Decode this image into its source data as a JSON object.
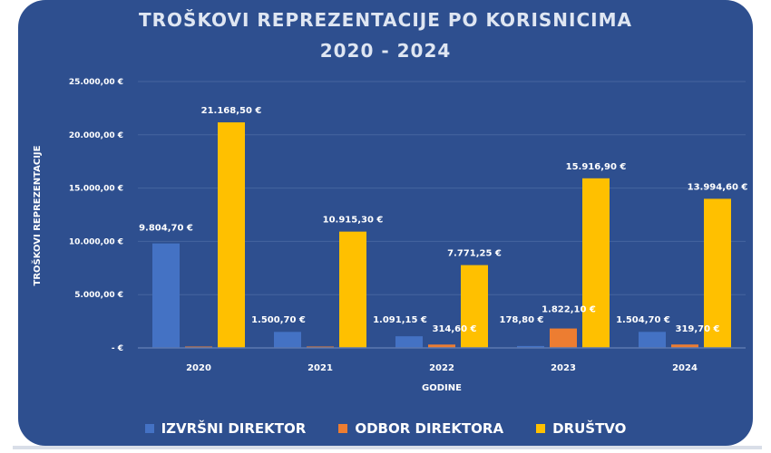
{
  "chart_data": {
    "type": "bar",
    "title": "TROŠKOVI REPREZENTACIJE PO KORISNICIMA",
    "subtitle": "2020 - 2024",
    "xlabel": "GODINE",
    "ylabel": "TROŠKOVI REPREZENTACIJE",
    "ylim": [
      0,
      25000
    ],
    "yticks": [
      0,
      5000,
      10000,
      15000,
      20000,
      25000
    ],
    "ytick_labels": [
      "-   €",
      "5.000,00 €",
      "10.000,00 €",
      "15.000,00 €",
      "20.000,00 €",
      "25.000,00 €"
    ],
    "categories": [
      "2020",
      "2021",
      "2022",
      "2023",
      "2024"
    ],
    "series": [
      {
        "name": "IZVRŠNI DIREKTOR",
        "color": "#4472c4",
        "values": [
          9804.7,
          1500.7,
          1091.15,
          178.8,
          1504.7
        ],
        "labels": [
          "9.804,70 €",
          "1.500,70 €",
          "1.091,15 €",
          "178,80 €",
          "1.504,70 €"
        ]
      },
      {
        "name": "ODBOR DIREKTORA",
        "color": "#ed7d31",
        "values": [
          120,
          120,
          314.6,
          1822.1,
          319.7
        ],
        "labels": [
          "",
          "",
          "314,60 €",
          "1.822,10 €",
          "319,70 €"
        ]
      },
      {
        "name": "DRUŠTVO",
        "color": "#ffc000",
        "values": [
          21168.5,
          10915.3,
          7771.25,
          15916.9,
          13994.6
        ],
        "labels": [
          "21.168,50 €",
          "10.915,30 €",
          "7.771,25 €",
          "15.916,90 €",
          "13.994,60 €"
        ]
      }
    ],
    "legend_position": "bottom",
    "grid": true
  }
}
